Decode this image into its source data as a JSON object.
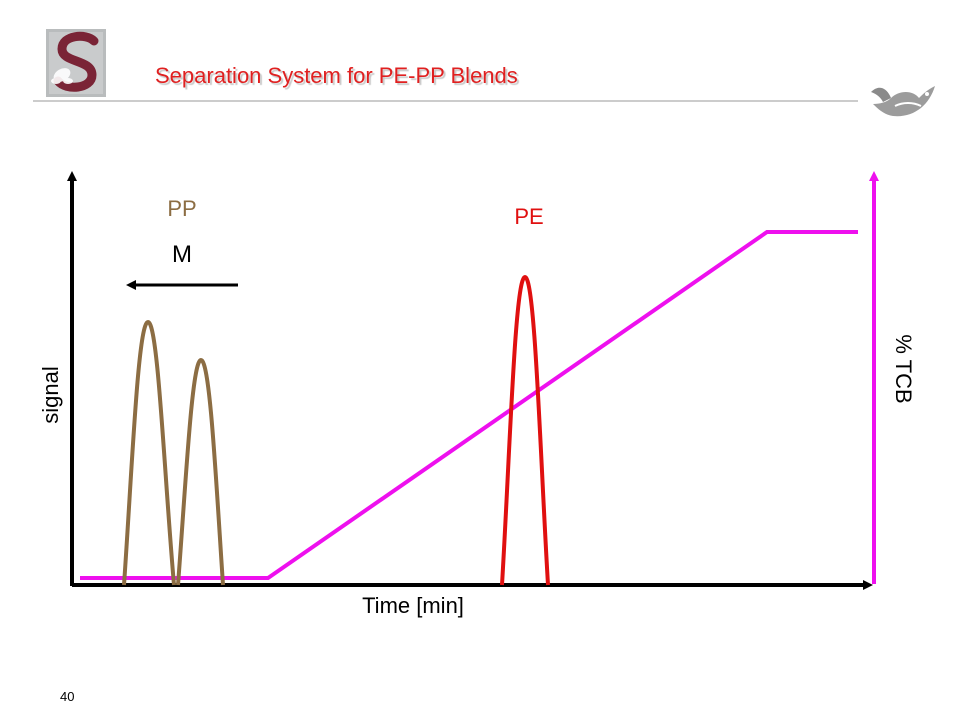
{
  "slide": {
    "title": "Separation System for PE-PP Blends",
    "page_number": "40"
  },
  "diagram": {
    "labels": {
      "pp": "PP",
      "pe": "PE",
      "m": "M",
      "signal_axis": "signal",
      "time_axis": "Time [min]",
      "tcb_axis": "% TCB"
    },
    "colors": {
      "title": "#e02020",
      "pp": "#8c6d43",
      "pe": "#e01010",
      "gradient": "#ee10ee",
      "axis": "#000000",
      "divider": "#9a9a9a"
    },
    "icons": [
      "university-logo-icon",
      "fish-logo-icon",
      "arrow-left-icon"
    ]
  }
}
